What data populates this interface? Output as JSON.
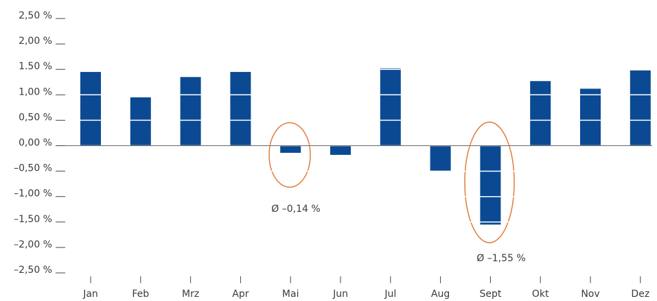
{
  "chart_data": {
    "type": "bar",
    "categories": [
      "Jan",
      "Feb",
      "Mrz",
      "Apr",
      "Mai",
      "Jun",
      "Jul",
      "Aug",
      "Sept",
      "Okt",
      "Nov",
      "Dez"
    ],
    "values": [
      1.45,
      0.95,
      1.35,
      1.45,
      -0.14,
      -0.18,
      1.52,
      -0.5,
      -1.55,
      1.27,
      1.12,
      1.48
    ],
    "color": "#0b4a93",
    "ylim": [
      -2.5,
      2.5
    ],
    "yticks": [
      {
        "value": 2.5,
        "label": "2,50 %"
      },
      {
        "value": 2.0,
        "label": "2,00 %"
      },
      {
        "value": 1.5,
        "label": "1.50 %"
      },
      {
        "value": 1.0,
        "label": "1,00 %"
      },
      {
        "value": 0.5,
        "label": "0,50 %"
      },
      {
        "value": 0.0,
        "label": "0,00 %"
      },
      {
        "value": -0.5,
        "label": "–0,50 %"
      },
      {
        "value": -1.0,
        "label": "–1,00 %"
      },
      {
        "value": -1.5,
        "label": "–1,50 %"
      },
      {
        "value": -2.0,
        "label": "–2,00 %"
      },
      {
        "value": -2.5,
        "label": "–2,50 %"
      }
    ],
    "grid": true,
    "annotations": [
      "Ø –0,14 %",
      "Ø –1,55 %"
    ]
  }
}
